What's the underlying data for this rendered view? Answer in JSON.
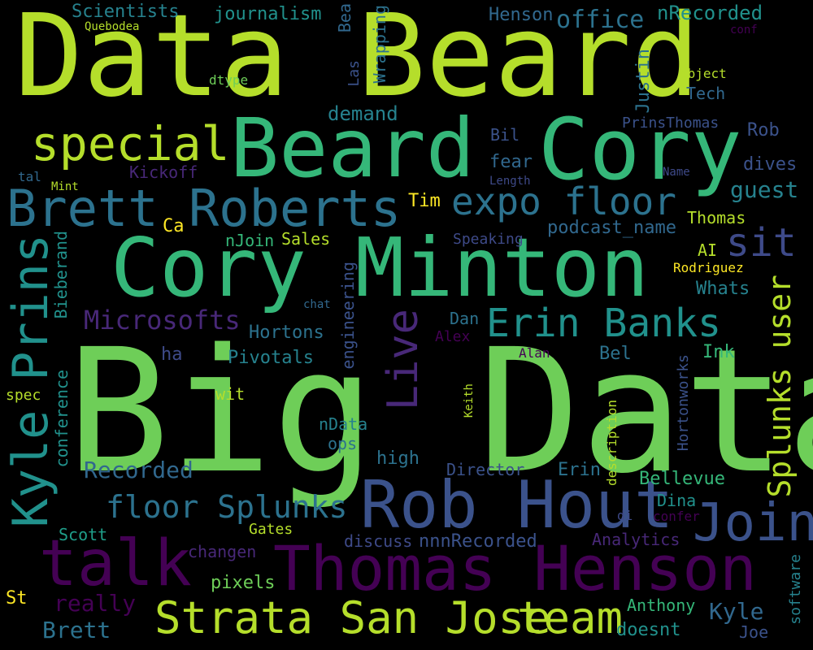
{
  "cloud": {
    "words": [
      {
        "text": "Data Beard",
        "color": "#b5de2b"
      },
      {
        "text": "Big Data",
        "color": "#6ece58"
      },
      {
        "text": "Cory Minton",
        "color": "#35b779"
      },
      {
        "text": "Cory",
        "color": "#35b779"
      },
      {
        "text": "Beard",
        "color": "#35b779"
      },
      {
        "text": "Brett Roberts",
        "color": "#2c728e"
      },
      {
        "text": "special",
        "color": "#b5de2b"
      },
      {
        "text": "expo floor",
        "color": "#2c728e"
      },
      {
        "text": "Thomas Henson",
        "color": "#440154"
      },
      {
        "text": "Rob Hout",
        "color": "#3b528b"
      },
      {
        "text": "talk",
        "color": "#440154"
      },
      {
        "text": "Join",
        "color": "#3b528b"
      },
      {
        "text": "Strata San Jose",
        "color": "#b5de2b"
      },
      {
        "text": "team",
        "color": "#b5de2b"
      },
      {
        "text": "Erin Banks",
        "color": "#21918c"
      },
      {
        "text": "Kyle Prins",
        "color": "#21918c"
      },
      {
        "text": "Live",
        "color": "#482878"
      },
      {
        "text": "sit",
        "color": "#3e4a89"
      },
      {
        "text": "Splunks user",
        "color": "#b5de2b"
      },
      {
        "text": "floor Splunks",
        "color": "#2c728e"
      },
      {
        "text": "Microsofts",
        "color": "#482878"
      },
      {
        "text": "Recorded",
        "color": "#31688e"
      },
      {
        "text": "guest",
        "color": "#26828e"
      },
      {
        "text": "Scientists",
        "color": "#26828e"
      },
      {
        "text": "journalism",
        "color": "#21918c"
      },
      {
        "text": "office",
        "color": "#2c728e"
      },
      {
        "text": "Henson",
        "color": "#31688e"
      },
      {
        "text": "nRecorded",
        "color": "#21918c"
      },
      {
        "text": "Quebodea",
        "color": "#b5de2b"
      },
      {
        "text": "conf",
        "color": "#440154"
      },
      {
        "text": "dtype",
        "color": "#6ece58"
      },
      {
        "text": "object",
        "color": "#b5de2b"
      },
      {
        "text": "Tech",
        "color": "#31688e"
      },
      {
        "text": "PrinsThomas",
        "color": "#3b528b"
      },
      {
        "text": "Rob",
        "color": "#3b528b"
      },
      {
        "text": "demand",
        "color": "#26828e"
      },
      {
        "text": "Bil",
        "color": "#3b528b"
      },
      {
        "text": "fear",
        "color": "#31688e"
      },
      {
        "text": "Length",
        "color": "#3e4a89"
      },
      {
        "text": "Name",
        "color": "#3e4a89"
      },
      {
        "text": "dives",
        "color": "#3b528b"
      },
      {
        "text": "Kickoff",
        "color": "#482878"
      },
      {
        "text": "tal",
        "color": "#31688e"
      },
      {
        "text": "Mint",
        "color": "#b5de2b"
      },
      {
        "text": "Tim",
        "color": "#fde725"
      },
      {
        "text": "Ca",
        "color": "#fde725"
      },
      {
        "text": "nJoin",
        "color": "#35b779"
      },
      {
        "text": "Sales",
        "color": "#b5de2b"
      },
      {
        "text": "Speaking",
        "color": "#3e4a89"
      },
      {
        "text": "podcast_name",
        "color": "#31688e"
      },
      {
        "text": "Thomas",
        "color": "#b5de2b"
      },
      {
        "text": "AI",
        "color": "#b5de2b"
      },
      {
        "text": "Rodriguez",
        "color": "#fde725"
      },
      {
        "text": "Whats",
        "color": "#26828e"
      },
      {
        "text": "chat",
        "color": "#31688e"
      },
      {
        "text": "Hortons",
        "color": "#2c728e"
      },
      {
        "text": "Dan",
        "color": "#2c728e"
      },
      {
        "text": "Alex",
        "color": "#440154"
      },
      {
        "text": "Pivotals",
        "color": "#26828e"
      },
      {
        "text": "Bel",
        "color": "#2c728e"
      },
      {
        "text": "Alan",
        "color": "#440154"
      },
      {
        "text": "Ink",
        "color": "#35b779"
      },
      {
        "text": "ha",
        "color": "#3e4a89"
      },
      {
        "text": "spec",
        "color": "#b5de2b"
      },
      {
        "text": "wit",
        "color": "#b5de2b"
      },
      {
        "text": "nData",
        "color": "#26828e"
      },
      {
        "text": "ops",
        "color": "#2c728e"
      },
      {
        "text": "high",
        "color": "#2c728e"
      },
      {
        "text": "Director",
        "color": "#3b528b"
      },
      {
        "text": "Erin",
        "color": "#2c728e"
      },
      {
        "text": "Bellevue",
        "color": "#35b779"
      },
      {
        "text": "Dina",
        "color": "#21918c"
      },
      {
        "text": "di",
        "color": "#3e4a89"
      },
      {
        "text": "confer",
        "color": "#440154"
      },
      {
        "text": "Scott",
        "color": "#1f9e89"
      },
      {
        "text": "Gates",
        "color": "#b5de2b"
      },
      {
        "text": "discuss",
        "color": "#3e4a89"
      },
      {
        "text": "nnnRecorded",
        "color": "#3b528b"
      },
      {
        "text": "Analytics",
        "color": "#482878"
      },
      {
        "text": "changen",
        "color": "#482878"
      },
      {
        "text": "pixels",
        "color": "#6ece58"
      },
      {
        "text": "really",
        "color": "#440154"
      },
      {
        "text": "Kyle",
        "color": "#31688e"
      },
      {
        "text": "St",
        "color": "#fde725"
      },
      {
        "text": "Brett",
        "color": "#2c728e"
      },
      {
        "text": "Anthony",
        "color": "#35b779"
      },
      {
        "text": "doesnt",
        "color": "#21918c"
      },
      {
        "text": "Joe",
        "color": "#3b528b"
      },
      {
        "text": "Bea",
        "color": "#31688e"
      },
      {
        "text": "Wrapping",
        "color": "#2c728e"
      },
      {
        "text": "Las",
        "color": "#3b528b"
      },
      {
        "text": "Justin",
        "color": "#2c728e"
      },
      {
        "text": "Bieberand",
        "color": "#21918c"
      },
      {
        "text": "conference",
        "color": "#21918c"
      },
      {
        "text": "engineering",
        "color": "#3b528b"
      },
      {
        "text": "Keith",
        "color": "#b5de2b"
      },
      {
        "text": "description",
        "color": "#b5de2b"
      },
      {
        "text": "Hortonworks",
        "color": "#3b528b"
      },
      {
        "text": "software",
        "color": "#26828e"
      }
    ]
  }
}
